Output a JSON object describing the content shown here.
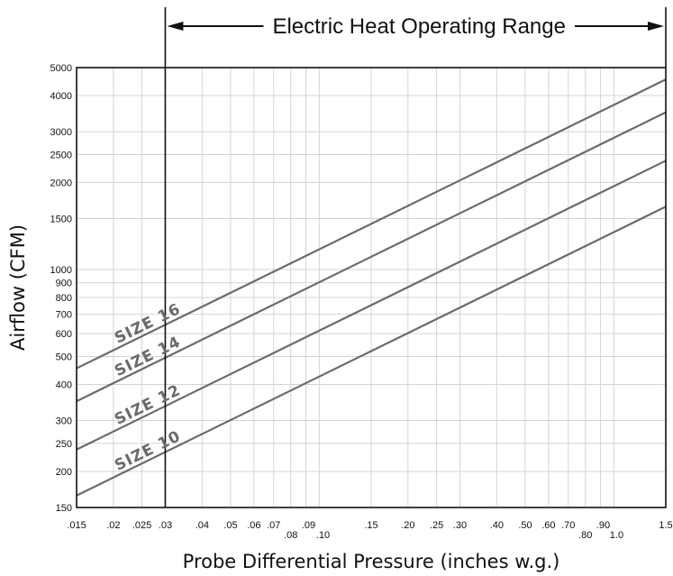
{
  "chart_data": {
    "type": "line",
    "title": "",
    "annotation": "Electric Heat Operating Range",
    "xlabel": "Probe Differential Pressure (inches w.g.)",
    "ylabel": "Airflow (CFM)",
    "xscale": "log",
    "yscale": "log",
    "xlim": [
      0.015,
      1.5
    ],
    "ylim": [
      150,
      5000
    ],
    "grid": true,
    "operating_range_start_x": 0.03,
    "x_ticks": [
      {
        "value": 0.015,
        "label": ".015"
      },
      {
        "value": 0.02,
        "label": ".02"
      },
      {
        "value": 0.025,
        "label": ".025"
      },
      {
        "value": 0.03,
        "label": ".03"
      },
      {
        "value": 0.04,
        "label": ".04"
      },
      {
        "value": 0.05,
        "label": ".05"
      },
      {
        "value": 0.06,
        "label": ".06"
      },
      {
        "value": 0.07,
        "label": ".07"
      },
      {
        "value": 0.08,
        "label": ".08"
      },
      {
        "value": 0.09,
        "label": ".09"
      },
      {
        "value": 0.1,
        "label": ".10"
      },
      {
        "value": 0.15,
        "label": ".15"
      },
      {
        "value": 0.2,
        "label": ".20"
      },
      {
        "value": 0.25,
        "label": ".25"
      },
      {
        "value": 0.3,
        "label": ".30"
      },
      {
        "value": 0.4,
        "label": ".40"
      },
      {
        "value": 0.5,
        "label": ".50"
      },
      {
        "value": 0.6,
        "label": ".60"
      },
      {
        "value": 0.7,
        "label": ".70"
      },
      {
        "value": 0.8,
        "label": ".80"
      },
      {
        "value": 0.9,
        "label": ".90"
      },
      {
        "value": 1.0,
        "label": "1.0"
      },
      {
        "value": 1.5,
        "label": "1.5"
      }
    ],
    "y_ticks": [
      {
        "value": 150,
        "label": "150"
      },
      {
        "value": 200,
        "label": "200"
      },
      {
        "value": 250,
        "label": "250"
      },
      {
        "value": 300,
        "label": "300"
      },
      {
        "value": 400,
        "label": "400"
      },
      {
        "value": 500,
        "label": "500"
      },
      {
        "value": 600,
        "label": "600"
      },
      {
        "value": 700,
        "label": "700"
      },
      {
        "value": 800,
        "label": "800"
      },
      {
        "value": 900,
        "label": "900"
      },
      {
        "value": 1000,
        "label": "1000"
      },
      {
        "value": 1500,
        "label": "1500"
      },
      {
        "value": 2000,
        "label": "2000"
      },
      {
        "value": 2500,
        "label": "2500"
      },
      {
        "value": 3000,
        "label": "3000"
      },
      {
        "value": 4000,
        "label": "4000"
      },
      {
        "value": 5000,
        "label": "5000"
      }
    ],
    "series": [
      {
        "name": "SIZE 16",
        "x": [
          0.015,
          1.5
        ],
        "y": [
          455,
          4550
        ]
      },
      {
        "name": "SIZE 14",
        "x": [
          0.015,
          1.5
        ],
        "y": [
          350,
          3500
        ]
      },
      {
        "name": "SIZE 12",
        "x": [
          0.015,
          1.5
        ],
        "y": [
          238,
          2380
        ]
      },
      {
        "name": "SIZE 10",
        "x": [
          0.015,
          1.5
        ],
        "y": [
          165,
          1650
        ]
      }
    ],
    "series_color": "#6b6b6b",
    "grid_color": "#d4d4d4"
  }
}
